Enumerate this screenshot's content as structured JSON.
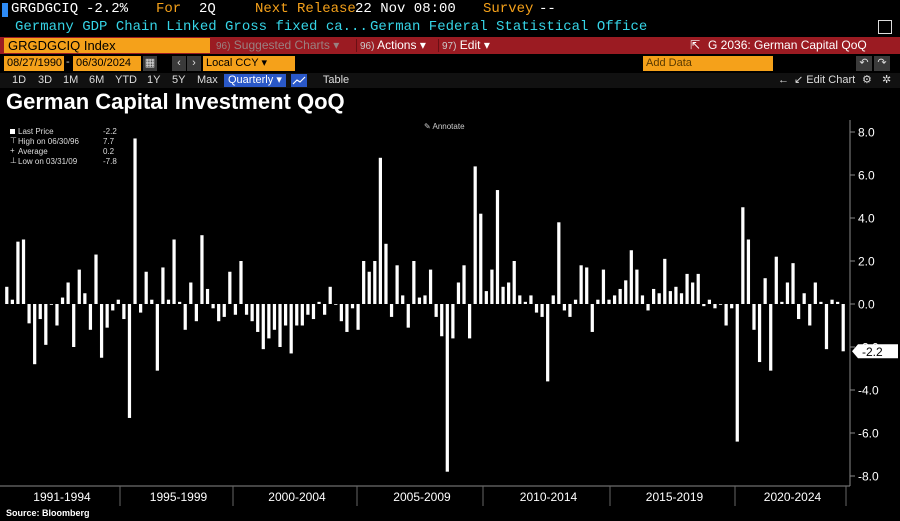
{
  "header": {
    "ticker": "GRGDGCIQ",
    "last_change": "-2.2%",
    "for_label": "For",
    "for_value": "2Q",
    "next_release_label": "Next Release",
    "next_release_value": "22 Nov 08:00",
    "survey_label": "Survey",
    "survey_value": "--",
    "description": "Germany GDP Chain Linked Gross fixed ca...",
    "source_org": "German Federal Statistical Office"
  },
  "toolbar": {
    "security_field": "GRGDGCIQ Index",
    "suggested_num": "96)",
    "suggested_label": "Suggested Charts",
    "actions_num": "96)",
    "actions_label": "Actions",
    "edit_num": "97)",
    "edit_label": "Edit",
    "function_label": "G 2036: German Capital QoQ"
  },
  "range": {
    "start_date": "08/27/1990",
    "end_date": "06/30/2024",
    "currency": "Local CCY",
    "add_data_placeholder": "Add Data"
  },
  "periods": {
    "items": [
      "1D",
      "3D",
      "1M",
      "6M",
      "YTD",
      "1Y",
      "5Y",
      "Max"
    ],
    "frequency": "Quarterly",
    "table_label": "Table",
    "edit_chart_label": "Edit Chart"
  },
  "legend": {
    "last_price_label": "Last Price",
    "last_price_value": "-2.2",
    "high_label": "High on 06/30/96",
    "high_value": "7.7",
    "average_label": "Average",
    "average_value": "0.2",
    "low_label": "Low on 03/31/09",
    "low_value": "-7.8"
  },
  "annotate_label": "Annotate",
  "source": "Source: Bloomberg",
  "colors": {
    "background": "#000000",
    "bars": "#ffffff",
    "header_orange": "#f5a11a",
    "header_cyan": "#36d4e6",
    "toolbar_red": "#9b1b22"
  },
  "chart_data": {
    "type": "bar",
    "title": "German Capital Investment QoQ",
    "xlabel": "",
    "ylabel": "",
    "ylim": [
      -8.0,
      8.0
    ],
    "y_ticks": [
      "8.0",
      "6.0",
      "4.0",
      "2.0",
      "0.0",
      "-2.0",
      "-4.0",
      "-6.0",
      "-8.0"
    ],
    "x_period_labels": [
      "1991-1994",
      "1995-1999",
      "2000-2004",
      "2005-2009",
      "2010-2014",
      "2015-2019",
      "2020-2024"
    ],
    "last_value_label": "-2.2",
    "grid": false,
    "legend_position": "top-left",
    "start_quarter": "1990 Q4",
    "values": [
      0.8,
      0.2,
      2.9,
      3.0,
      -0.9,
      -2.8,
      -0.7,
      -1.9,
      0.0,
      -1.0,
      0.3,
      1.0,
      -2.0,
      1.6,
      0.5,
      -1.2,
      2.3,
      -2.5,
      -1.1,
      -0.3,
      0.2,
      -0.7,
      -5.3,
      7.7,
      -0.4,
      1.5,
      0.2,
      -3.1,
      1.7,
      0.2,
      3.0,
      0.1,
      -1.2,
      1.0,
      -0.8,
      3.2,
      0.7,
      -0.2,
      -0.8,
      -0.6,
      1.5,
      -0.5,
      2.0,
      -0.5,
      -0.8,
      -1.3,
      -2.1,
      -1.6,
      -1.2,
      -2.0,
      -1.0,
      -2.3,
      -1.0,
      -1.0,
      -0.5,
      -0.7,
      0.1,
      -0.5,
      0.8,
      0.0,
      -0.8,
      -1.3,
      -0.2,
      -1.2,
      2.0,
      1.5,
      2.0,
      6.8,
      2.8,
      -0.6,
      1.8,
      0.4,
      -1.1,
      2.0,
      0.3,
      0.4,
      1.6,
      -0.6,
      -1.5,
      -7.8,
      -1.6,
      1.0,
      1.8,
      -1.6,
      6.4,
      4.2,
      0.6,
      1.6,
      5.3,
      0.8,
      1.0,
      2.0,
      0.4,
      0.1,
      0.4,
      -0.4,
      -0.6,
      -3.6,
      0.4,
      3.8,
      -0.3,
      -0.6,
      0.2,
      1.8,
      1.7,
      -1.3,
      0.2,
      1.6,
      0.2,
      0.4,
      0.7,
      1.1,
      2.5,
      1.6,
      0.4,
      -0.3,
      0.7,
      0.5,
      2.1,
      0.6,
      0.8,
      0.5,
      1.4,
      1.0,
      1.4,
      -0.1,
      0.2,
      -0.2,
      0.0,
      -1.0,
      -0.2,
      -6.4,
      4.5,
      3.0,
      -1.2,
      -2.7,
      1.2,
      -3.1,
      2.2,
      0.1,
      1.0,
      1.9,
      -0.7,
      0.5,
      -1.0,
      1.0,
      0.1,
      -2.1,
      0.2,
      0.1,
      -2.2
    ]
  }
}
